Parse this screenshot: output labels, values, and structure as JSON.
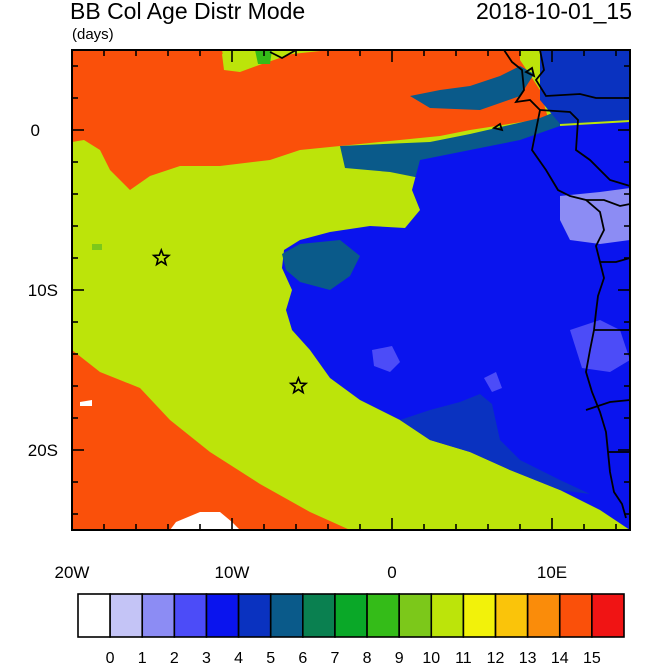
{
  "header": {
    "title": "BB Col Age Distr Mode",
    "units": "(days)",
    "timestamp": "2018-10-01_15"
  },
  "map": {
    "lon_range": [
      -20,
      15
    ],
    "lat_range": [
      -25,
      5
    ],
    "x_tick_labels": [
      "20W",
      "10W",
      "0",
      "10E"
    ],
    "y_tick_labels": [
      "0",
      "10S",
      "20S"
    ],
    "stations": [
      {
        "name": "star-1",
        "lon": -14.4,
        "lat": -8.0
      },
      {
        "name": "star-2",
        "lon": -5.8,
        "lat": -16.0
      }
    ]
  },
  "colorbar": {
    "labels": [
      "0",
      "1",
      "2",
      "3",
      "4",
      "5",
      "6",
      "7",
      "8",
      "9",
      "10",
      "11",
      "12",
      "13",
      "14",
      "15"
    ],
    "colors": [
      "#ffffff",
      "#c4c4f6",
      "#8c8cf4",
      "#4c4cf8",
      "#0a14ee",
      "#0a32c0",
      "#0a5a8a",
      "#0a8050",
      "#0aa828",
      "#34bc18",
      "#7cc81a",
      "#bce40a",
      "#f2f20a",
      "#fac40a",
      "#fa8c0a",
      "#fa500a",
      "#f01414"
    ]
  }
}
